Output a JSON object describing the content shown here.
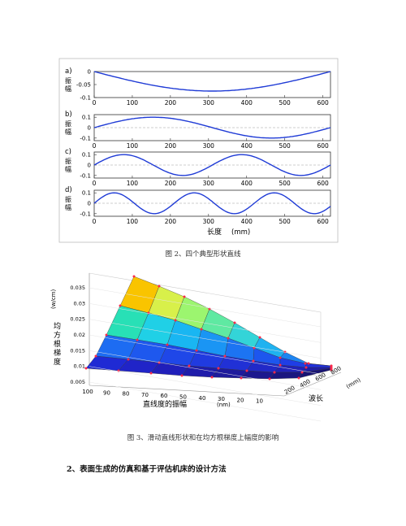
{
  "figure2": {
    "caption": "图 2、四个典型形状直线",
    "xaxis_label": "长度",
    "xaxis_unit": "(mm)",
    "ylabel": [
      "振",
      "幅"
    ],
    "xticks": [
      "0",
      "100",
      "200",
      "300",
      "400",
      "500",
      "600"
    ],
    "panels": [
      {
        "label": "a)",
        "yticks": [
          "0",
          "-0.05",
          "-0.1"
        ],
        "type": "arc"
      },
      {
        "label": "b)",
        "yticks": [
          "0.1",
          "0",
          "-0.1"
        ],
        "type": "sine1"
      },
      {
        "label": "c)",
        "yticks": [
          "0.1",
          "0",
          "-0.1"
        ],
        "type": "sine2"
      },
      {
        "label": "d)",
        "yticks": [
          "0.1",
          "0",
          "-0.1"
        ],
        "type": "sine3"
      }
    ],
    "line_color": "#1f3bd6"
  },
  "figure3": {
    "caption": "图 3、滑动直线形状和在均方根梯度上幅度的影响",
    "zlabel_unit": "(w/cm)",
    "zlabel": [
      "均",
      "方",
      "根",
      "梯",
      "度"
    ],
    "zticks": [
      "0.035",
      "0.03",
      "0.025",
      "0.02",
      "0.015",
      "0.01",
      "0.005"
    ],
    "amp_ticks": [
      "100",
      "90",
      "80",
      "70",
      "60",
      "50",
      "40",
      "30",
      "20",
      "10"
    ],
    "amp_label": "直线度的振幅",
    "amp_unit": "(nm)",
    "wl_ticks": [
      "200",
      "400",
      "600",
      "800"
    ],
    "wl_unit": "(mm)",
    "wl_label": "波长"
  },
  "section_heading": "2、表面生成的仿真和基于评估机床的设计方法"
}
